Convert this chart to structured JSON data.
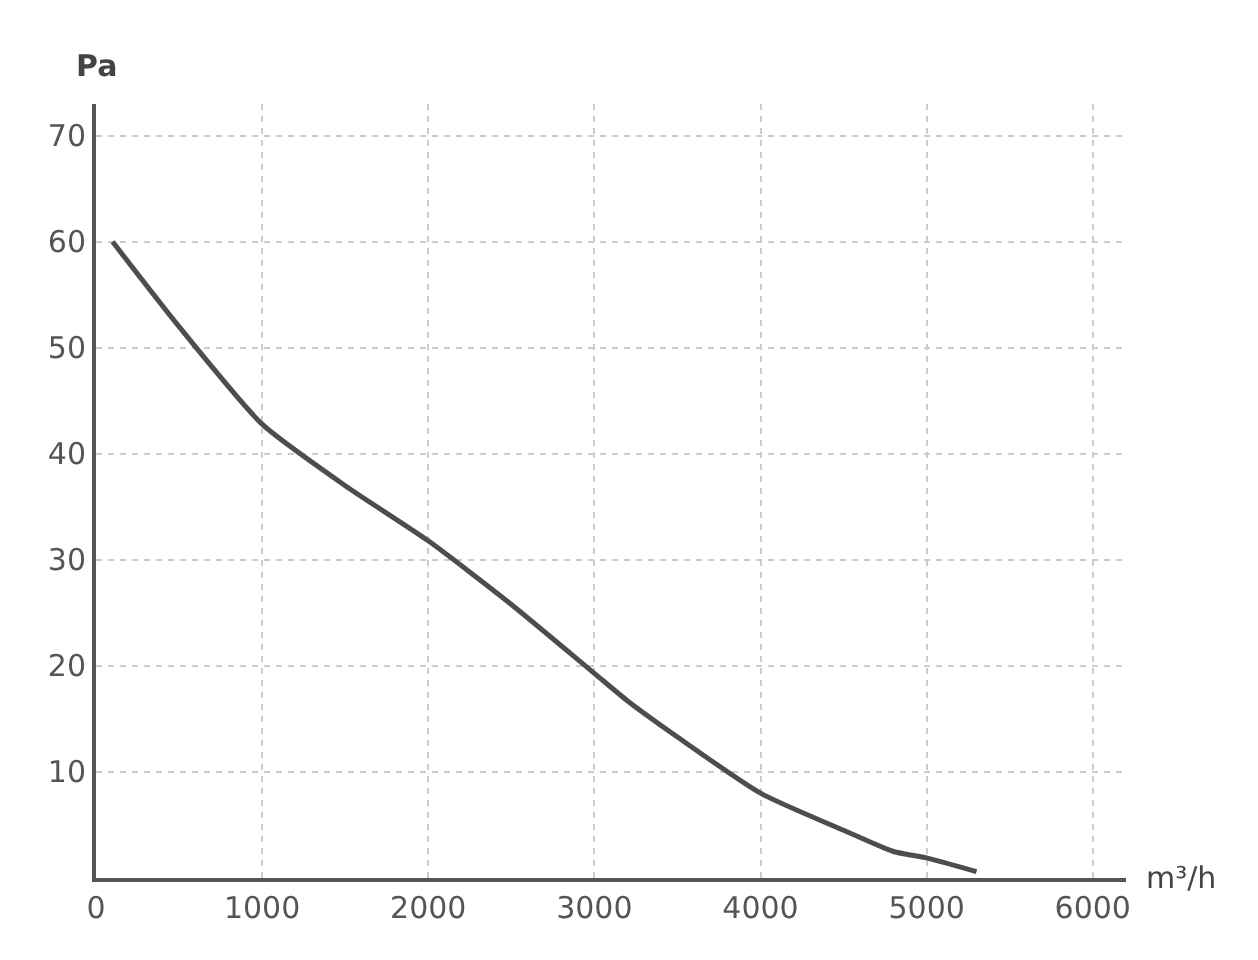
{
  "chart_data": {
    "type": "line",
    "xlabel": "m³/h",
    "ylabel": "Pa",
    "x": [
      100,
      500,
      1000,
      1500,
      2000,
      2500,
      3000,
      3200,
      3500,
      4000,
      4500,
      4800,
      5000,
      5300
    ],
    "series": [
      {
        "color": "#4d4d4f",
        "values": [
          60,
          52,
          42.8,
          37,
          31.8,
          25.8,
          19.3,
          16.7,
          13.3,
          8,
          4.5,
          2.5,
          1.9,
          0.6
        ]
      }
    ],
    "xlim": [
      0,
      6200
    ],
    "xticks": [
      0,
      1000,
      2000,
      3000,
      4000,
      5000,
      6000
    ],
    "ylim": [
      0,
      73
    ],
    "yticks": [
      10,
      20,
      30,
      40,
      50,
      60,
      70
    ],
    "grid": true,
    "marker": "none",
    "line_style": "solid"
  }
}
